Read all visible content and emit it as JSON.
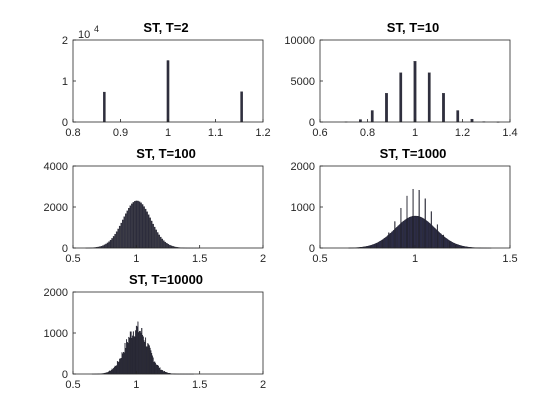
{
  "chart_data": [
    {
      "type": "bar",
      "title": "ST, T=2",
      "xlim": [
        0.8,
        1.2
      ],
      "ylim": [
        0,
        20000
      ],
      "xticks": [
        "0.8",
        "0.9",
        "1",
        "1.1",
        "1.2"
      ],
      "xtick_values": [
        0.8,
        0.9,
        1.0,
        1.1,
        1.2
      ],
      "yticks": [
        "0",
        "1",
        "2"
      ],
      "ytick_values": [
        0,
        10000,
        20000
      ],
      "y_exponent": "10",
      "y_exponent_power": "4",
      "x": [
        0.866,
        1.0,
        1.155
      ],
      "values": [
        7300,
        15000,
        7400
      ]
    },
    {
      "type": "bar",
      "title": "ST, T=10",
      "xlim": [
        0.6,
        1.4
      ],
      "ylim": [
        0,
        10000
      ],
      "xticks": [
        "0.6",
        "0.8",
        "1",
        "1.2",
        "1.4"
      ],
      "xtick_values": [
        0.6,
        0.8,
        1.0,
        1.2,
        1.4
      ],
      "yticks": [
        "0",
        "5000",
        "10000"
      ],
      "ytick_values": [
        0,
        5000,
        10000
      ],
      "x": [
        0.71,
        0.77,
        0.82,
        0.88,
        0.94,
        1.0,
        1.06,
        1.12,
        1.18,
        1.24,
        1.29,
        1.35
      ],
      "values": [
        30,
        300,
        1400,
        3500,
        6000,
        7400,
        6000,
        3500,
        1400,
        350,
        50,
        10
      ]
    },
    {
      "type": "bar",
      "title": "ST, T=100",
      "xlim": [
        0.5,
        2
      ],
      "ylim": [
        0,
        4000
      ],
      "xticks": [
        "0.5",
        "1",
        "1.5",
        "2"
      ],
      "xtick_values": [
        0.5,
        1.0,
        1.5,
        2.0
      ],
      "yticks": [
        "0",
        "2000",
        "4000"
      ],
      "ytick_values": [
        0,
        2000,
        4000
      ],
      "distribution": {
        "mean": 1.0,
        "sd": 0.11,
        "peak": 2300,
        "from": 0.6,
        "to": 1.5,
        "bin": 0.012,
        "spiky": false
      }
    },
    {
      "type": "bar",
      "title": "ST, T=1000",
      "xlim": [
        0.5,
        1.5
      ],
      "ylim": [
        0,
        2000
      ],
      "xticks": [
        "0.5",
        "1",
        "1.5"
      ],
      "xtick_values": [
        0.5,
        1.0,
        1.5
      ],
      "yticks": [
        "0",
        "1000",
        "2000"
      ],
      "ytick_values": [
        0,
        1000,
        2000
      ],
      "distribution": {
        "mean": 1.0,
        "sd": 0.105,
        "peak": 780,
        "from": 0.65,
        "to": 1.4,
        "bin": 0.004,
        "spiky": true,
        "spike_peak": 1450,
        "spike_spacing": 0.032,
        "spike_sd": 0.085
      }
    },
    {
      "type": "bar",
      "title": "ST, T=10000",
      "xlim": [
        0.5,
        2
      ],
      "ylim": [
        0,
        2000
      ],
      "xticks": [
        "0.5",
        "1",
        "1.5",
        "2"
      ],
      "xtick_values": [
        0.5,
        1.0,
        1.5,
        2.0
      ],
      "yticks": [
        "0",
        "1000",
        "2000"
      ],
      "ytick_values": [
        0,
        1000,
        2000
      ],
      "distribution": {
        "mean": 1.0,
        "sd": 0.09,
        "peak": 1100,
        "from": 0.65,
        "to": 1.45,
        "bin": 0.006,
        "spiky": false,
        "jitter": true
      }
    }
  ]
}
